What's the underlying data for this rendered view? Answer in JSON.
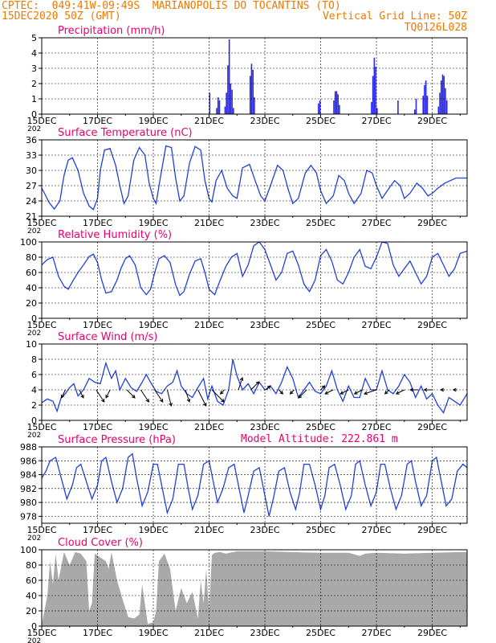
{
  "header": {
    "line1_left": "CPTEC:  049:41W-09:49S  MARIANOPOLIS DO TOCANTINS (TO)",
    "line2_left": "15DEC2020 50Z (GMT)",
    "line2_right": "Vertical Grid Line: 50Z",
    "line3_right": "TQ0126L028",
    "altitude": "Model Altitude: 222.861 m"
  },
  "colors": {
    "header": "#f07800",
    "title": "#e8006e",
    "line": "#2040e0",
    "bar": "#2a2ae8",
    "cloud": "#a9a9a9",
    "arrow": "#000000"
  },
  "x_axis": {
    "labels": [
      "15DEC",
      "17DEC",
      "19DEC",
      "21DEC",
      "23DEC",
      "25DEC",
      "27DEC",
      "29DEC"
    ],
    "label_days": [
      0,
      2,
      4,
      6,
      8,
      10,
      12,
      14
    ],
    "year_fragment": "202",
    "day_range": [
      0,
      15.25
    ]
  },
  "chart_data": [
    {
      "type": "bar",
      "title": "Precipitation (mm/h)",
      "ylim": [
        0,
        5
      ],
      "yticks": [
        0,
        1,
        2,
        3,
        4,
        5
      ],
      "events": [
        [
          6.0,
          1.4
        ],
        [
          6.25,
          0.4
        ],
        [
          6.3,
          1.1
        ],
        [
          6.35,
          0.9
        ],
        [
          6.55,
          0.5
        ],
        [
          6.6,
          1.4
        ],
        [
          6.65,
          3.2
        ],
        [
          6.7,
          4.9
        ],
        [
          6.75,
          2.0
        ],
        [
          6.8,
          1.6
        ],
        [
          6.85,
          0.4
        ],
        [
          7.45,
          2.5
        ],
        [
          7.5,
          3.3
        ],
        [
          7.55,
          2.9
        ],
        [
          7.6,
          1.1
        ],
        [
          9.9,
          0.7
        ],
        [
          9.95,
          0.9
        ],
        [
          10.45,
          0.9
        ],
        [
          10.5,
          1.5
        ],
        [
          10.55,
          1.5
        ],
        [
          10.6,
          1.3
        ],
        [
          10.65,
          0.6
        ],
        [
          11.8,
          0.8
        ],
        [
          11.85,
          2.5
        ],
        [
          11.9,
          3.7
        ],
        [
          11.95,
          3.1
        ],
        [
          12.0,
          0.4
        ],
        [
          12.75,
          0.9
        ],
        [
          13.35,
          0.3
        ],
        [
          13.4,
          1.0
        ],
        [
          13.65,
          1.2
        ],
        [
          13.7,
          1.9
        ],
        [
          13.75,
          2.2
        ],
        [
          13.8,
          1.2
        ],
        [
          14.2,
          0.5
        ],
        [
          14.25,
          1.4
        ],
        [
          14.3,
          2.2
        ],
        [
          14.35,
          2.6
        ],
        [
          14.4,
          2.5
        ],
        [
          14.45,
          1.7
        ],
        [
          14.5,
          0.9
        ]
      ]
    },
    {
      "type": "line",
      "title": "Surface Temperature (nC)",
      "ylim": [
        21,
        36
      ],
      "yticks": [
        21,
        24,
        27,
        30,
        33,
        36
      ],
      "x": [
        0,
        0.1,
        0.25,
        0.45,
        0.65,
        0.8,
        0.95,
        1.1,
        1.3,
        1.5,
        1.7,
        1.85,
        2,
        2.1,
        2.25,
        2.45,
        2.65,
        2.8,
        2.95,
        3.1,
        3.3,
        3.5,
        3.7,
        3.85,
        4,
        4.1,
        4.25,
        4.45,
        4.65,
        4.8,
        4.95,
        5.1,
        5.3,
        5.5,
        5.7,
        5.85,
        6,
        6.1,
        6.25,
        6.45,
        6.65,
        6.85,
        7,
        7.2,
        7.45,
        7.65,
        7.85,
        8,
        8.2,
        8.45,
        8.65,
        8.85,
        9,
        9.2,
        9.45,
        9.65,
        9.85,
        10,
        10.2,
        10.45,
        10.65,
        10.85,
        11,
        11.2,
        11.45,
        11.65,
        11.85,
        12,
        12.2,
        12.45,
        12.65,
        12.85,
        13,
        13.2,
        13.45,
        13.65,
        13.85,
        14,
        14.2,
        14.45,
        14.65,
        14.85,
        15,
        15.25
      ],
      "y": [
        26.5,
        25.5,
        23.8,
        22.4,
        24.0,
        29.0,
        32.0,
        32.5,
        30.0,
        25.5,
        23.0,
        22.3,
        24.5,
        30.0,
        34.0,
        34.3,
        31.0,
        27.0,
        23.5,
        25.0,
        32.0,
        34.5,
        33.0,
        27.5,
        24.5,
        23.5,
        28.5,
        34.8,
        34.5,
        28.5,
        24.0,
        25.0,
        31.5,
        34.7,
        34.0,
        28.0,
        24.5,
        23.8,
        28.0,
        30.0,
        26.5,
        25.0,
        24.5,
        30.5,
        31.2,
        28.0,
        25.0,
        24.0,
        27.0,
        31.0,
        30.0,
        26.0,
        23.5,
        24.5,
        29.5,
        31.0,
        29.5,
        26.0,
        23.5,
        25.0,
        29.0,
        28.0,
        25.5,
        23.5,
        25.5,
        30.0,
        29.5,
        27.0,
        24.5,
        26.5,
        28.0,
        27.0,
        24.5,
        25.5,
        27.5,
        26.5,
        25.0,
        25.5,
        26.5,
        27.5,
        28.0,
        28.5,
        28.5,
        28.5
      ]
    },
    {
      "type": "line",
      "title": "Relative Humidity (%)",
      "ylim": [
        0,
        100
      ],
      "yticks": [
        0,
        20,
        40,
        60,
        80,
        100
      ],
      "x": [
        0,
        0.2,
        0.4,
        0.6,
        0.8,
        0.95,
        1.1,
        1.3,
        1.5,
        1.7,
        1.85,
        2,
        2.15,
        2.3,
        2.5,
        2.7,
        2.85,
        3,
        3.15,
        3.35,
        3.55,
        3.75,
        3.9,
        4.05,
        4.2,
        4.4,
        4.6,
        4.8,
        4.95,
        5.1,
        5.3,
        5.5,
        5.7,
        5.85,
        6,
        6.2,
        6.4,
        6.6,
        6.8,
        7,
        7.2,
        7.4,
        7.6,
        7.8,
        8,
        8.2,
        8.4,
        8.6,
        8.8,
        9,
        9.2,
        9.4,
        9.6,
        9.8,
        10,
        10.2,
        10.4,
        10.6,
        10.8,
        11,
        11.2,
        11.4,
        11.6,
        11.8,
        12,
        12.2,
        12.4,
        12.6,
        12.8,
        13,
        13.2,
        13.4,
        13.6,
        13.8,
        14,
        14.2,
        14.4,
        14.6,
        14.8,
        15,
        15.25
      ],
      "y": [
        70,
        77,
        80,
        55,
        42,
        38,
        48,
        60,
        70,
        81,
        84,
        73,
        50,
        33,
        35,
        50,
        66,
        78,
        82,
        70,
        40,
        31,
        38,
        60,
        78,
        82,
        73,
        44,
        30,
        35,
        58,
        75,
        78,
        60,
        38,
        31,
        50,
        68,
        80,
        85,
        55,
        70,
        95,
        100,
        90,
        70,
        50,
        60,
        85,
        88,
        70,
        45,
        35,
        50,
        82,
        90,
        75,
        50,
        45,
        60,
        80,
        90,
        68,
        65,
        80,
        100,
        98,
        70,
        55,
        65,
        75,
        60,
        45,
        55,
        80,
        85,
        70,
        55,
        65,
        85,
        88
      ]
    },
    {
      "type": "line",
      "title": "Surface Wind (m/s)",
      "ylim": [
        0,
        10
      ],
      "yticks": [
        0,
        2,
        4,
        6,
        8,
        10
      ],
      "x": [
        0,
        0.2,
        0.4,
        0.55,
        0.7,
        0.85,
        1,
        1.15,
        1.3,
        1.5,
        1.7,
        1.9,
        2.1,
        2.3,
        2.5,
        2.65,
        2.8,
        3,
        3.2,
        3.4,
        3.6,
        3.75,
        3.9,
        4.1,
        4.3,
        4.5,
        4.7,
        4.85,
        5,
        5.2,
        5.4,
        5.6,
        5.8,
        5.95,
        6.1,
        6.3,
        6.5,
        6.7,
        6.85,
        7,
        7.2,
        7.4,
        7.6,
        7.8,
        8,
        8.2,
        8.4,
        8.6,
        8.8,
        9,
        9.2,
        9.4,
        9.6,
        9.8,
        10,
        10.2,
        10.4,
        10.6,
        10.8,
        11,
        11.2,
        11.4,
        11.6,
        11.8,
        12,
        12.2,
        12.4,
        12.6,
        12.8,
        13,
        13.2,
        13.4,
        13.6,
        13.8,
        14,
        14.2,
        14.4,
        14.6,
        14.8,
        15,
        15.25
      ],
      "y": [
        2.3,
        2.8,
        2.5,
        1.2,
        3.0,
        3.5,
        4.3,
        4.8,
        3.2,
        4.0,
        5.5,
        5.0,
        4.8,
        7.5,
        5.5,
        6.5,
        4.0,
        5.5,
        4.3,
        3.8,
        5.0,
        6.0,
        5.0,
        3.8,
        3.5,
        4.5,
        5.0,
        6.5,
        4.5,
        3.5,
        3.0,
        4.3,
        5.5,
        2.8,
        4.5,
        2.5,
        2.0,
        4.0,
        8.0,
        5.8,
        4.0,
        4.8,
        3.5,
        5.0,
        4.0,
        4.5,
        3.5,
        5.0,
        7.0,
        5.5,
        3.0,
        4.0,
        5.0,
        3.8,
        3.5,
        4.5,
        6.5,
        4.0,
        2.5,
        4.5,
        3.0,
        3.0,
        5.5,
        4.0,
        4.0,
        6.5,
        4.0,
        3.5,
        4.5,
        6.0,
        5.0,
        3.0,
        4.5,
        2.8,
        3.5,
        2.0,
        1.0,
        3.0,
        2.5,
        2.0,
        3.5
      ]
    },
    {
      "type": "line",
      "title": "Surface Pressure (hPa)",
      "ylim": [
        977,
        988
      ],
      "yticks": [
        978,
        980,
        982,
        984,
        986,
        988
      ],
      "x": [
        0,
        0.15,
        0.3,
        0.5,
        0.7,
        0.9,
        1.1,
        1.25,
        1.4,
        1.6,
        1.8,
        2,
        2.15,
        2.3,
        2.5,
        2.7,
        2.9,
        3.1,
        3.25,
        3.4,
        3.6,
        3.8,
        4,
        4.15,
        4.3,
        4.5,
        4.7,
        4.9,
        5.1,
        5.25,
        5.4,
        5.6,
        5.8,
        6,
        6.15,
        6.3,
        6.5,
        6.7,
        6.9,
        7.1,
        7.25,
        7.4,
        7.6,
        7.8,
        8,
        8.15,
        8.3,
        8.5,
        8.7,
        8.9,
        9.1,
        9.25,
        9.4,
        9.6,
        9.8,
        10,
        10.15,
        10.3,
        10.5,
        10.7,
        10.9,
        11.1,
        11.25,
        11.4,
        11.6,
        11.8,
        12,
        12.15,
        12.3,
        12.5,
        12.7,
        12.9,
        13.1,
        13.25,
        13.4,
        13.6,
        13.8,
        14,
        14.15,
        14.3,
        14.5,
        14.7,
        14.9,
        15.1,
        15.25
      ],
      "y": [
        983.5,
        984.5,
        986,
        986.5,
        983.5,
        980.5,
        982.5,
        985,
        985.5,
        983,
        980.5,
        982.5,
        986,
        986.5,
        983,
        980,
        982,
        986.5,
        987,
        983.5,
        979.5,
        981.5,
        985.5,
        985.5,
        982.5,
        978.5,
        980.5,
        985.5,
        985.5,
        982,
        979,
        981,
        985.5,
        986,
        983,
        980,
        982,
        985,
        985.5,
        981.5,
        978.5,
        981,
        984.5,
        985,
        981,
        978,
        980.5,
        984.5,
        985,
        981.5,
        979,
        981.5,
        985.5,
        985.5,
        982.5,
        979,
        981,
        985,
        985.5,
        982.5,
        979,
        981,
        985.5,
        986,
        982.5,
        979.5,
        981.5,
        985.5,
        985.5,
        982,
        979,
        981,
        985.5,
        986,
        983,
        979.5,
        981,
        986,
        986.5,
        983.5,
        979.5,
        980.5,
        984.5,
        985.5,
        985
      ]
    },
    {
      "type": "area",
      "title": "Cloud Cover (%)",
      "ylim": [
        0,
        100
      ],
      "yticks": [
        0,
        20,
        40,
        60,
        80,
        100
      ],
      "x": [
        0,
        0.2,
        0.3,
        0.4,
        0.5,
        0.6,
        0.8,
        1.0,
        1.2,
        1.4,
        1.6,
        1.7,
        1.8,
        1.9,
        2.1,
        2.3,
        2.4,
        2.5,
        2.7,
        2.9,
        3.1,
        3.3,
        3.5,
        3.6,
        3.8,
        4.0,
        4.1,
        4.2,
        4.4,
        4.6,
        4.8,
        5.0,
        5.2,
        5.4,
        5.6,
        5.7,
        5.8,
        5.9,
        6.0,
        6.1,
        6.2,
        6.4,
        6.6,
        7.0,
        8.0,
        9.0,
        10.0,
        11.0,
        11.4,
        11.6,
        12.0,
        13.0,
        14.0,
        15.0,
        15.25
      ],
      "y": [
        2,
        40,
        85,
        55,
        95,
        60,
        97,
        80,
        97,
        95,
        85,
        20,
        30,
        95,
        90,
        85,
        75,
        97,
        60,
        35,
        12,
        10,
        15,
        55,
        3,
        5,
        20,
        85,
        95,
        75,
        20,
        50,
        30,
        45,
        10,
        60,
        30,
        75,
        20,
        93,
        96,
        97,
        95,
        98,
        98,
        97,
        96,
        96,
        92,
        95,
        96,
        95,
        96,
        97,
        97
      ]
    }
  ],
  "wind_vectors": {
    "x": [
      0.85,
      1.35,
      1.95,
      2.45,
      3.05,
      3.55,
      4.05,
      4.5,
      5.15,
      5.6,
      6.1,
      6.55,
      7.05,
      7.5,
      8.05,
      8.5,
      9.05,
      9.5,
      10.0,
      10.45,
      11.0,
      11.5,
      12.0,
      12.45,
      13.0,
      13.5,
      14.0,
      14.45,
      14.9
    ],
    "u": [
      -1,
      1,
      2,
      -1,
      2,
      2,
      2,
      1,
      1,
      2,
      3,
      -1,
      1,
      2,
      1,
      1,
      -1,
      -2,
      1,
      -2,
      -2,
      -2,
      -3,
      -1,
      -2,
      -2,
      -2,
      -1,
      -1
    ],
    "v": [
      2,
      2,
      3,
      2,
      2,
      3,
      3,
      4,
      3,
      4,
      3,
      1,
      -3,
      -2,
      -1,
      1,
      1,
      2,
      -1,
      1,
      1,
      1,
      1,
      1,
      1,
      0,
      0,
      0,
      0
    ]
  },
  "panel_titles": [
    "Precipitation (mm/h)",
    "Surface Temperature (nC)",
    "Relative Humidity (%)",
    "Surface Wind (m/s)",
    "Surface Pressure (hPa)",
    "Cloud Cover (%)"
  ]
}
